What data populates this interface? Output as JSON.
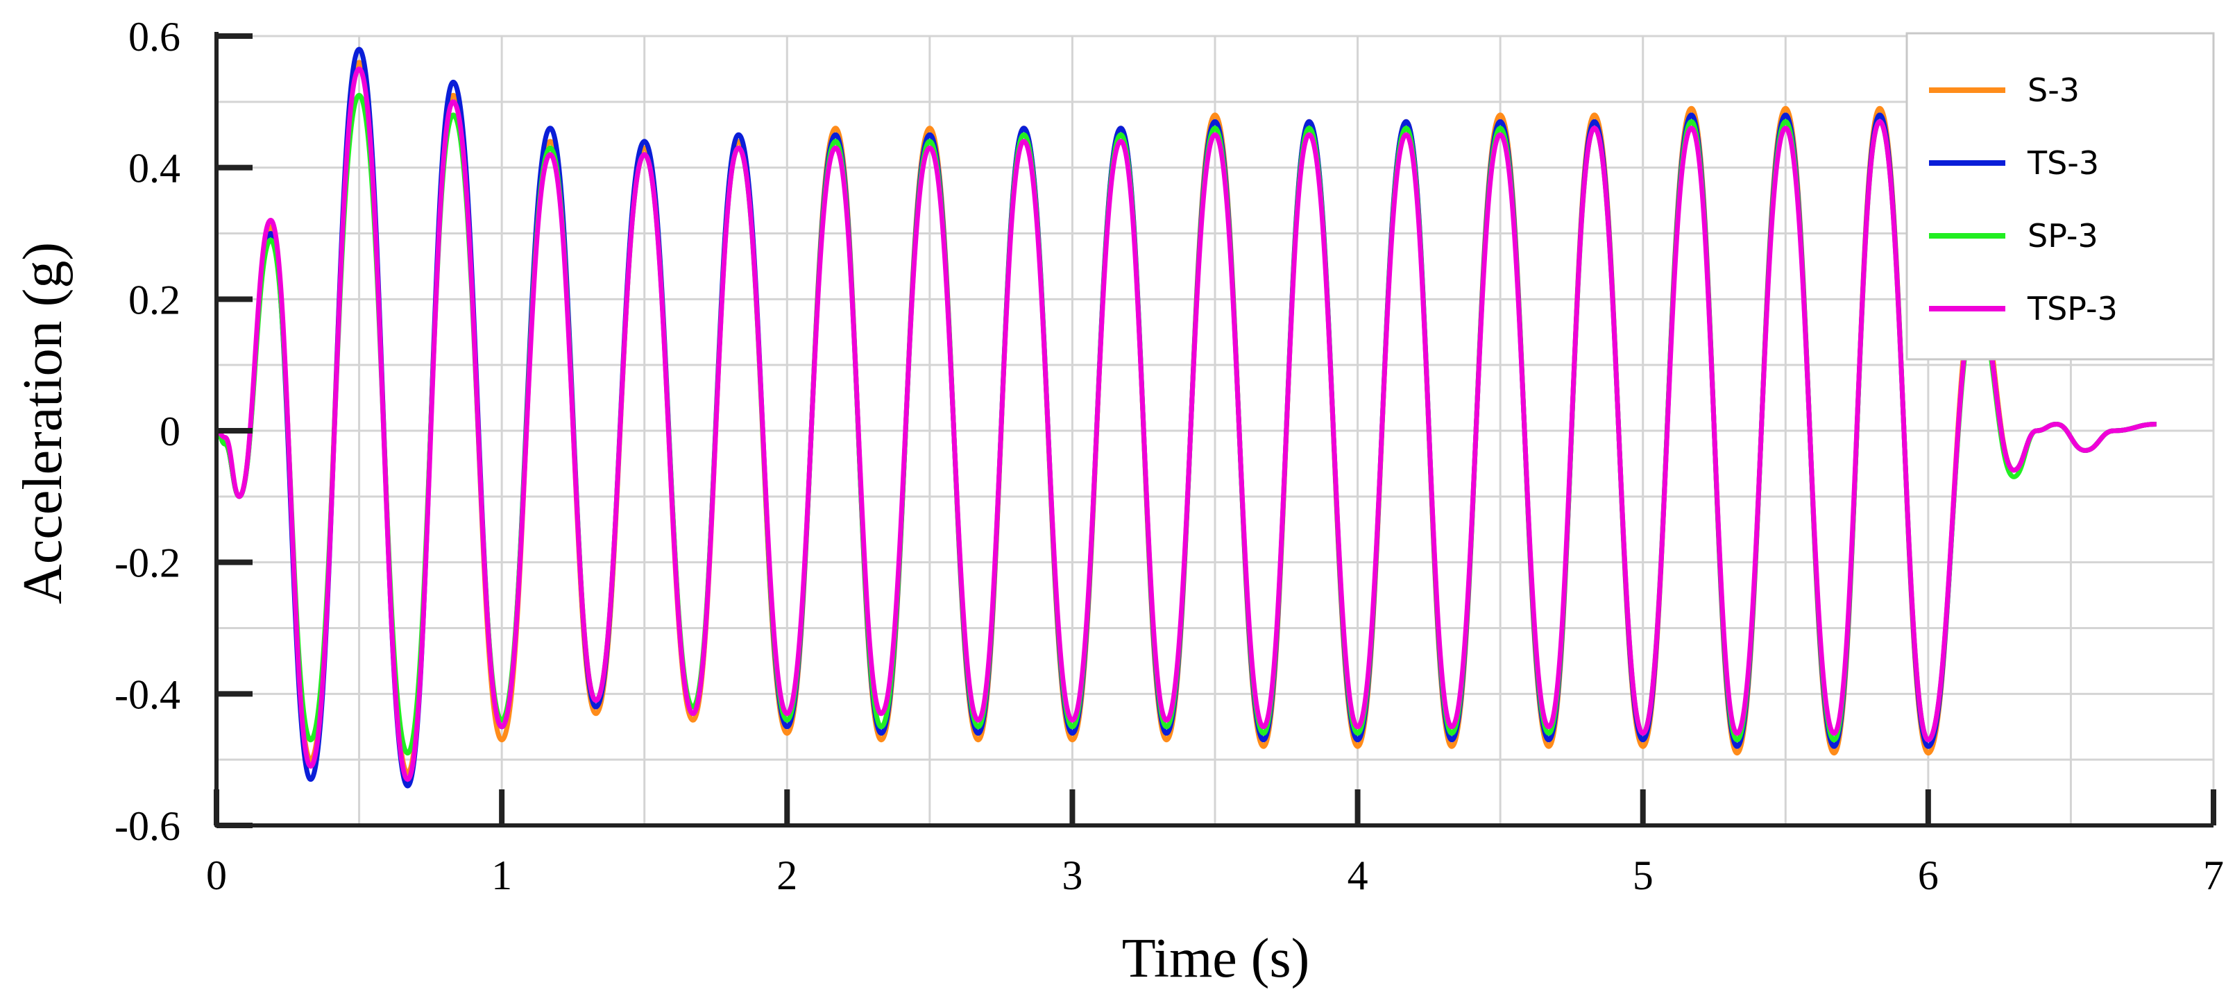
{
  "chart_data": {
    "type": "line",
    "title": "",
    "xlabel": "Time (s)",
    "ylabel": "Acceleration (g)",
    "xlim": [
      0,
      7
    ],
    "ylim": [
      -0.6,
      0.6
    ],
    "x_ticks": [
      "0",
      "1",
      "2",
      "3",
      "4",
      "5",
      "6",
      "7"
    ],
    "y_ticks": [
      "0.6",
      "0.4",
      "0.2",
      "0",
      "-0.2",
      "-0.4",
      "-0.6"
    ],
    "grid": true,
    "legend_position": "top-right",
    "x": [
      0,
      0.03,
      0.08,
      0.19,
      0.33,
      0.5,
      0.67,
      0.83,
      1.0,
      1.17,
      1.33,
      1.5,
      1.67,
      1.83,
      2.0,
      2.17,
      2.33,
      2.5,
      2.67,
      2.83,
      3.0,
      3.17,
      3.33,
      3.5,
      3.67,
      3.83,
      4.0,
      4.17,
      4.33,
      4.5,
      4.67,
      4.83,
      5.0,
      5.17,
      5.33,
      5.5,
      5.67,
      5.83,
      6.0,
      6.17,
      6.3,
      6.38,
      6.45,
      6.55,
      6.65,
      6.8
    ],
    "series": [
      {
        "name": "S-3",
        "color": "#FF8C1A",
        "values": [
          0,
          -0.02,
          -0.1,
          0.31,
          -0.5,
          0.56,
          -0.52,
          0.51,
          -0.47,
          0.44,
          -0.43,
          0.43,
          -0.44,
          0.44,
          -0.46,
          0.46,
          -0.47,
          0.46,
          -0.47,
          0.46,
          -0.47,
          0.46,
          -0.47,
          0.48,
          -0.48,
          0.47,
          -0.48,
          0.47,
          -0.48,
          0.48,
          -0.48,
          0.48,
          -0.48,
          0.49,
          -0.49,
          0.49,
          -0.49,
          0.49,
          -0.49,
          0.22,
          -0.06,
          0.0,
          0.01,
          -0.03,
          0.0,
          0.01
        ]
      },
      {
        "name": "TS-3",
        "color": "#0A1ED8",
        "values": [
          0,
          -0.02,
          -0.1,
          0.3,
          -0.53,
          0.58,
          -0.54,
          0.53,
          -0.45,
          0.46,
          -0.42,
          0.44,
          -0.43,
          0.45,
          -0.45,
          0.45,
          -0.46,
          0.45,
          -0.46,
          0.46,
          -0.46,
          0.46,
          -0.46,
          0.47,
          -0.47,
          0.47,
          -0.47,
          0.47,
          -0.47,
          0.47,
          -0.47,
          0.47,
          -0.47,
          0.48,
          -0.48,
          0.48,
          -0.48,
          0.48,
          -0.48,
          0.2,
          -0.06,
          0.0,
          0.01,
          -0.03,
          0.0,
          0.01
        ]
      },
      {
        "name": "SP-3",
        "color": "#22EE22",
        "values": [
          0,
          -0.02,
          -0.1,
          0.29,
          -0.47,
          0.51,
          -0.49,
          0.48,
          -0.44,
          0.43,
          -0.41,
          0.42,
          -0.42,
          0.43,
          -0.44,
          0.44,
          -0.45,
          0.44,
          -0.45,
          0.45,
          -0.45,
          0.45,
          -0.45,
          0.46,
          -0.46,
          0.46,
          -0.46,
          0.46,
          -0.46,
          0.46,
          -0.46,
          0.46,
          -0.46,
          0.47,
          -0.47,
          0.47,
          -0.47,
          0.47,
          -0.47,
          0.19,
          -0.07,
          0.0,
          0.01,
          -0.03,
          0.0,
          0.01
        ]
      },
      {
        "name": "TSP-3",
        "color": "#F000D8",
        "values": [
          0,
          -0.01,
          -0.1,
          0.32,
          -0.51,
          0.55,
          -0.53,
          0.5,
          -0.45,
          0.42,
          -0.41,
          0.42,
          -0.43,
          0.43,
          -0.43,
          0.43,
          -0.43,
          0.43,
          -0.44,
          0.44,
          -0.44,
          0.44,
          -0.44,
          0.45,
          -0.45,
          0.45,
          -0.45,
          0.45,
          -0.45,
          0.45,
          -0.45,
          0.46,
          -0.46,
          0.46,
          -0.46,
          0.46,
          -0.46,
          0.47,
          -0.47,
          0.2,
          -0.06,
          0.0,
          0.01,
          -0.03,
          0.0,
          0.01
        ]
      }
    ]
  }
}
